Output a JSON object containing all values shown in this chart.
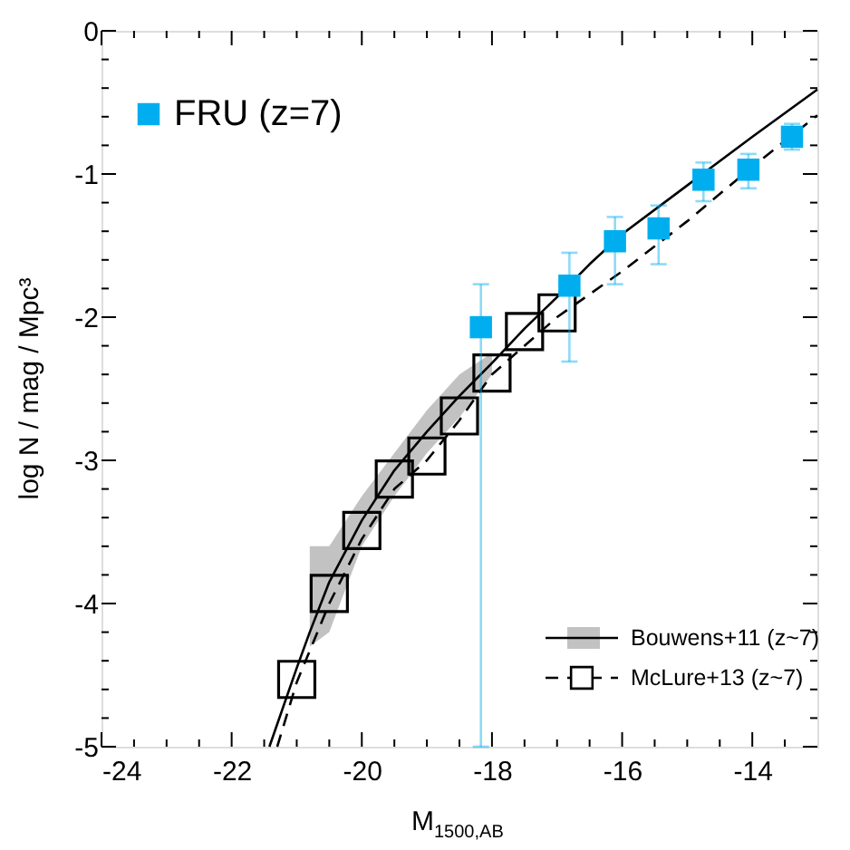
{
  "chart_data": {
    "type": "scatter",
    "xlabel": "M$_{1500,AB}$",
    "ylabel": "log N / mag / Mpc³",
    "xlim": [
      -24,
      -13
    ],
    "ylim": [
      -5,
      0
    ],
    "xticks": [
      -24,
      {
        "value": -23.5,
        "label": null
      },
      {
        "value": -23,
        "label": null
      },
      {
        "value": -22.5,
        "label": null
      },
      -22,
      {
        "value": -21.5,
        "label": null
      },
      {
        "value": -21,
        "label": null
      },
      {
        "value": -20.5,
        "label": null
      },
      -20,
      {
        "value": -19.5,
        "label": null
      },
      {
        "value": -19,
        "label": null
      },
      {
        "value": -18.5,
        "label": null
      },
      -18,
      {
        "value": -17.5,
        "label": null
      },
      {
        "value": -17,
        "label": null
      },
      {
        "value": -16.5,
        "label": null
      },
      -16,
      {
        "value": -15.5,
        "label": null
      },
      {
        "value": -15,
        "label": null
      },
      {
        "value": -14.5,
        "label": null
      },
      -14,
      {
        "value": -13.5,
        "label": null
      }
    ],
    "yticks": [
      -5,
      {
        "value": -4.8,
        "label": null
      },
      {
        "value": -4.6,
        "label": null
      },
      {
        "value": -4.4,
        "label": null
      },
      {
        "value": -4.2,
        "label": null
      },
      -4,
      {
        "value": -3.8,
        "label": null
      },
      {
        "value": -3.6,
        "label": null
      },
      {
        "value": -3.4,
        "label": null
      },
      {
        "value": -3.2,
        "label": null
      },
      -3,
      {
        "value": -2.8,
        "label": null
      },
      {
        "value": -2.6,
        "label": null
      },
      {
        "value": -2.4,
        "label": null
      },
      {
        "value": -2.2,
        "label": null
      },
      -2,
      {
        "value": -1.8,
        "label": null
      },
      {
        "value": -1.6,
        "label": null
      },
      {
        "value": -1.4,
        "label": null
      },
      {
        "value": -1.2,
        "label": null
      },
      -1,
      {
        "value": -0.8,
        "label": null
      },
      {
        "value": -0.6,
        "label": null
      },
      {
        "value": -0.4,
        "label": null
      },
      {
        "value": -0.2,
        "label": null
      },
      0
    ],
    "grid": false,
    "legend": "bottom right",
    "series": [
      {
        "name": "Bouwens+11 (z~7)",
        "type": "line",
        "line_style": "solid",
        "marker": "none",
        "color": "#000000",
        "x": [
          -21.42,
          -21.0,
          -20.8,
          -20.5,
          -20.0,
          -19.5,
          -19.0,
          -18.5,
          -18.0,
          -17.5,
          -17.0,
          -16.5,
          -16.0,
          -15.0,
          -14.0,
          -13.0
        ],
        "values": [
          -5,
          -4.45,
          -4.2,
          -3.85,
          -3.42,
          -3.07,
          -2.8,
          -2.55,
          -2.32,
          -2.08,
          -1.86,
          -1.63,
          -1.42,
          -1.08,
          -0.74,
          -0.41
        ],
        "lower": [
          null,
          null,
          -4.3,
          -4.2,
          -3.6,
          -3.25,
          -2.95,
          -2.7,
          -2.4,
          null,
          null,
          null,
          null,
          null,
          null,
          null
        ],
        "upper": [
          null,
          null,
          -3.6,
          -3.6,
          -3.25,
          -2.95,
          -2.65,
          -2.4,
          -2.25,
          null,
          null,
          null,
          null,
          null,
          null,
          null
        ]
      },
      {
        "name": "McLure+13 (z~7)",
        "type": "line",
        "line_style": "dashed",
        "marker": "none",
        "color": "#000000",
        "x": [
          -21.3,
          -21.0,
          -20.5,
          -20.0,
          -19.5,
          -19.0,
          -18.5,
          -18.0,
          -17.0,
          -16.0,
          -15.0,
          -14.0,
          -13.0
        ],
        "values": [
          -5,
          -4.55,
          -4.0,
          -3.55,
          -3.2,
          -3.0,
          -2.72,
          -2.4,
          -2.0,
          -1.68,
          -1.33,
          -0.95,
          -0.59
        ]
      },
      {
        "type": "scatter",
        "marker": "square",
        "color": "#000000",
        "x": [
          -21.0,
          -20.5,
          -20.0,
          -19.5,
          -19.0,
          -18.5,
          -18.0,
          -17.5,
          -17.0
        ],
        "values": [
          -4.53,
          -3.93,
          -3.49,
          -3.13,
          -2.97,
          -2.69,
          -2.39,
          -2.1,
          -1.97
        ]
      },
      {
        "name": "FRU (z=7)",
        "type": "scatter",
        "marker": "square",
        "color": "#00aeef",
        "x": [
          -18.17,
          -16.81,
          -16.11,
          -15.44,
          -14.75,
          -14.06,
          -13.39
        ],
        "values": [
          -2.07,
          -1.78,
          -1.47,
          -1.38,
          -1.04,
          -0.97,
          -0.74
        ],
        "errors": [
          [
            -5,
            -1.77
          ],
          [
            -2.31,
            -1.55
          ],
          [
            -1.77,
            -1.3
          ],
          [
            -1.63,
            -1.22
          ],
          [
            -1.19,
            -0.92
          ],
          [
            -1.1,
            -0.86
          ],
          [
            -0.83,
            -0.65
          ]
        ]
      }
    ]
  }
}
